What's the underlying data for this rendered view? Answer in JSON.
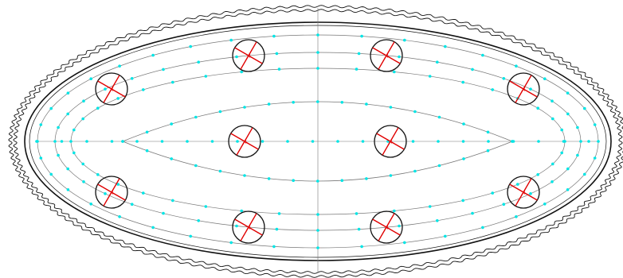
{
  "drawing": {
    "background": "#ffffff",
    "colors": {
      "outline": "#111111",
      "guide": "#777777",
      "point": "#00e5e5",
      "cut": "#e00000",
      "circle": "#111111"
    },
    "hole_count": 10,
    "hole_groups": [
      {
        "name": "upper-left-pair",
        "count": 2
      },
      {
        "name": "upper-right-pair",
        "count": 2
      },
      {
        "name": "center-pair",
        "count": 2
      },
      {
        "name": "lower-left-pair",
        "count": 2
      },
      {
        "name": "lower-right-pair",
        "count": 2
      }
    ]
  }
}
